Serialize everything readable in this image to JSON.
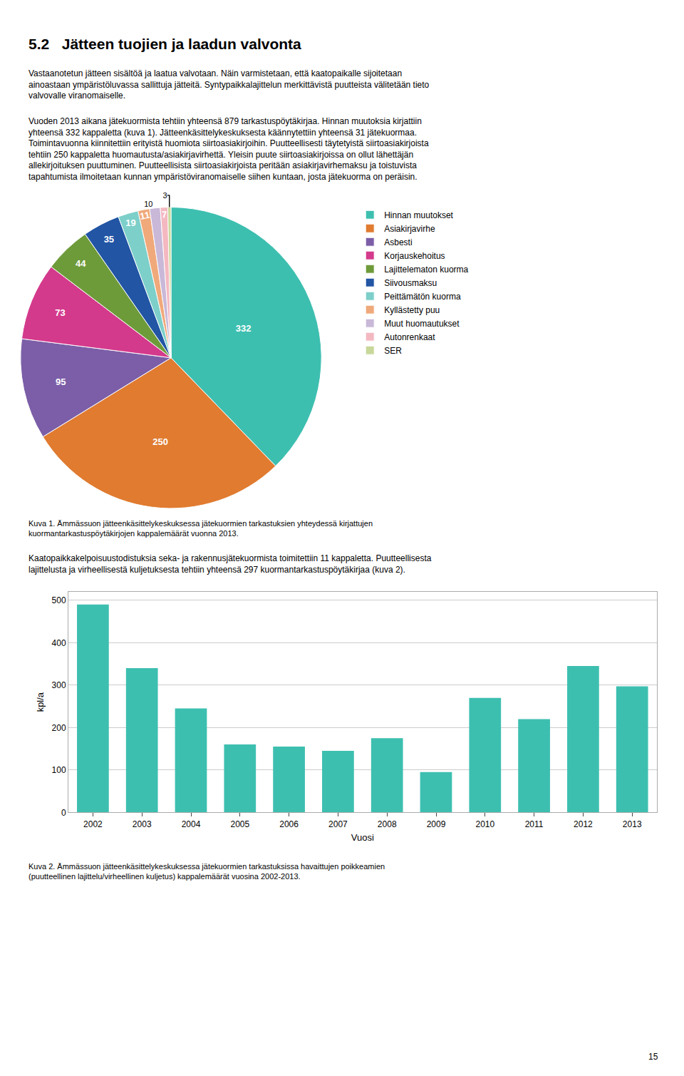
{
  "title": "5.2   Jätteen tuojien ja laadun valvonta",
  "paragraphs": [
    "Vastaanotetun jätteen sisältöä ja laatua valvotaan. Näin varmistetaan, että kaatopaikalle sijoitetaan\nainoastaan ympäristöluvassa sallittuja jätteitä. Syntypaikkalajittelun merkittävistä puutteista välitetään tieto\nvalvovalle viranomaiselle.",
    "Vuoden 2013 aikana jätekuormista tehtiin yhteensä 879 tarkastuspöytäkirjaa. Hinnan muutoksia kirjattiin\nyhteensä 332 kappaletta (kuva 1). Jätteenkäsittelykeskuksesta käännytettiin yhteensä 31 jätekuormaa.\nToimintavuonna kiinnitettiin erityistä huomiota siirtoasiakirjoihin. Puutteellisesti täytetyistä siirtoasiakirjoista\ntehtiin 250 kappaletta huomautusta/asiakirjavirhettä. Yleisin puute siirtoasiakirjoissa on ollut lähettäjän\nallekirjoituksen puuttuminen. Puutteellisista siirtoasiakirjoista peritään asiakirjavirhemaksu ja toistuvista\ntapahtumista ilmoitetaan kunnan ympäristöviranomaiselle siihen kuntaan, josta jätekuorma on peräisin.",
    "Kaatopaikkakelpoisuustodistuksia seka- ja rakennusjätekuormista toimitettiin 11 kappaletta. Puutteellisesta\nlajittelusta ja virheellisestä kuljetuksesta tehtiin yhteensä 297 kuormantarkastuspöytäkirjaa (kuva 2)."
  ],
  "page_number": "15",
  "chart_data": [
    {
      "type": "pie",
      "caption": "Kuva 1. Ämmässuon jätteenkäsittelykeskuksessa jätekuormien tarkastuksien yhteydessä kirjattujen\nkuormantarkastuspöytäkirjojen kappalemäärät vuonna 2013.",
      "categories": [
        "Hinnan muutokset",
        "Asiakirjavirhe",
        "Asbesti",
        "Korjauskehoitus",
        "Lajittelematon kuorma",
        "Siivousmaksu",
        "Peittämätön kuorma",
        "Kyllästetty puu",
        "Muut huomautukset",
        "Autonrenkaat",
        "SER"
      ],
      "values": [
        332,
        250,
        95,
        73,
        44,
        35,
        19,
        11,
        10,
        7,
        3
      ],
      "colors": [
        "#3dbfb0",
        "#e07b30",
        "#7b5ea7",
        "#d43a8c",
        "#6e9b3a",
        "#2255a4",
        "#7dcfca",
        "#f0a97a",
        "#c9b8d8",
        "#f4b8c1",
        "#c8d89a"
      ],
      "data_labels": true,
      "legend": "right"
    },
    {
      "type": "bar",
      "caption": "Kuva 2. Ämmässuon jätteenkäsittelykeskuksessa jätekuormien tarkastuksissa havaittujen poikkeamien\n(puutteellinen lajittelu/virheellinen kuljetus) kappalemäärät vuosina 2002-2013.",
      "categories": [
        "2002",
        "2003",
        "2004",
        "2005",
        "2006",
        "2007",
        "2008",
        "2009",
        "2010",
        "2011",
        "2012",
        "2013"
      ],
      "values": [
        490,
        340,
        245,
        160,
        155,
        145,
        175,
        95,
        270,
        220,
        345,
        297
      ],
      "color": "#3dbfb0",
      "xlabel": "Vuosi",
      "ylabel": "kpl/a",
      "ylim": [
        0,
        520
      ],
      "yticks": [
        0,
        100,
        200,
        300,
        400,
        500
      ],
      "grid": true
    }
  ]
}
